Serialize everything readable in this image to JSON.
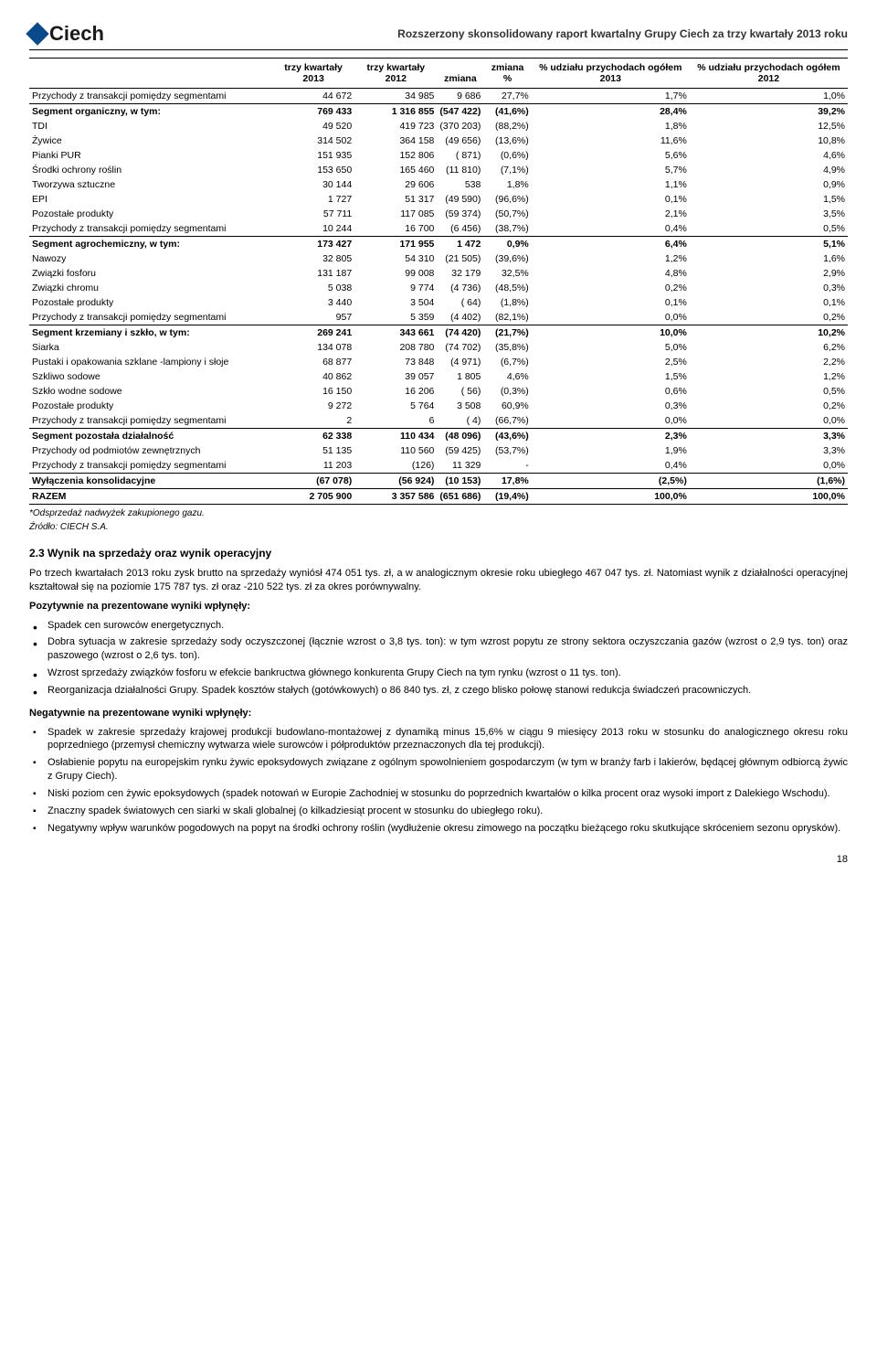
{
  "header": {
    "logo_text": "Ciech",
    "report_title": "Rozszerzony skonsolidowany raport kwartalny Grupy Ciech za trzy kwartały 2013 roku"
  },
  "table": {
    "columns": [
      "",
      "trzy kwartały 2013",
      "trzy kwartały 2012",
      "zmiana",
      "zmiana %",
      "% udziału przychodach ogółem 2013",
      "% udziału przychodach ogółem 2012"
    ],
    "rows": [
      {
        "style": "bottomline",
        "cells": [
          "Przychody z transakcji pomiędzy segmentami",
          "44 672",
          "34 985",
          "9 686",
          "27,7%",
          "1,7%",
          "1,0%"
        ]
      },
      {
        "style": "bold",
        "cells": [
          "Segment organiczny, w tym:",
          "769 433",
          "1 316 855",
          "(547 422)",
          "(41,6%)",
          "28,4%",
          "39,2%"
        ]
      },
      {
        "cells": [
          "TDI",
          "49 520",
          "419 723",
          "(370 203)",
          "(88,2%)",
          "1,8%",
          "12,5%"
        ]
      },
      {
        "cells": [
          "Żywice",
          "314 502",
          "364 158",
          "(49 656)",
          "(13,6%)",
          "11,6%",
          "10,8%"
        ]
      },
      {
        "cells": [
          "Pianki PUR",
          "151 935",
          "152 806",
          "( 871)",
          "(0,6%)",
          "5,6%",
          "4,6%"
        ]
      },
      {
        "cells": [
          "Środki ochrony roślin",
          "153 650",
          "165 460",
          "(11 810)",
          "(7,1%)",
          "5,7%",
          "4,9%"
        ]
      },
      {
        "cells": [
          "Tworzywa sztuczne",
          "30 144",
          "29 606",
          "538",
          "1,8%",
          "1,1%",
          "0,9%"
        ]
      },
      {
        "cells": [
          "EPI",
          "1 727",
          "51 317",
          "(49 590)",
          "(96,6%)",
          "0,1%",
          "1,5%"
        ]
      },
      {
        "cells": [
          "Pozostałe produkty",
          "57 711",
          "117 085",
          "(59 374)",
          "(50,7%)",
          "2,1%",
          "3,5%"
        ]
      },
      {
        "style": "bottomline",
        "cells": [
          "Przychody z transakcji pomiędzy segmentami",
          "10 244",
          "16 700",
          "(6 456)",
          "(38,7%)",
          "0,4%",
          "0,5%"
        ]
      },
      {
        "style": "bold",
        "cells": [
          "Segment agrochemiczny, w tym:",
          "173 427",
          "171 955",
          "1 472",
          "0,9%",
          "6,4%",
          "5,1%"
        ]
      },
      {
        "cells": [
          "Nawozy",
          "32 805",
          "54 310",
          "(21 505)",
          "(39,6%)",
          "1,2%",
          "1,6%"
        ]
      },
      {
        "cells": [
          "Związki fosforu",
          "131 187",
          "99 008",
          "32 179",
          "32,5%",
          "4,8%",
          "2,9%"
        ]
      },
      {
        "cells": [
          "Związki chromu",
          "5 038",
          "9 774",
          "(4 736)",
          "(48,5%)",
          "0,2%",
          "0,3%"
        ]
      },
      {
        "cells": [
          "Pozostałe produkty",
          "3 440",
          "3 504",
          "( 64)",
          "(1,8%)",
          "0,1%",
          "0,1%"
        ]
      },
      {
        "style": "bottomline",
        "cells": [
          "Przychody z transakcji pomiędzy segmentami",
          "957",
          "5 359",
          "(4 402)",
          "(82,1%)",
          "0,0%",
          "0,2%"
        ]
      },
      {
        "style": "bold",
        "cells": [
          "Segment krzemiany i szkło, w tym:",
          "269 241",
          "343 661",
          "(74 420)",
          "(21,7%)",
          "10,0%",
          "10,2%"
        ]
      },
      {
        "cells": [
          "Siarka",
          "134 078",
          "208 780",
          "(74 702)",
          "(35,8%)",
          "5,0%",
          "6,2%"
        ]
      },
      {
        "cells": [
          "Pustaki i opakowania szklane -lampiony i słoje",
          "68 877",
          "73 848",
          "(4 971)",
          "(6,7%)",
          "2,5%",
          "2,2%"
        ]
      },
      {
        "cells": [
          "Szkliwo sodowe",
          "40 862",
          "39 057",
          "1 805",
          "4,6%",
          "1,5%",
          "1,2%"
        ]
      },
      {
        "cells": [
          "Szkło wodne sodowe",
          "16 150",
          "16 206",
          "( 56)",
          "(0,3%)",
          "0,6%",
          "0,5%"
        ]
      },
      {
        "cells": [
          "Pozostałe produkty",
          "9 272",
          "5 764",
          "3 508",
          "60,9%",
          "0,3%",
          "0,2%"
        ]
      },
      {
        "style": "bottomline",
        "cells": [
          "Przychody z transakcji pomiędzy segmentami",
          "2",
          "6",
          "( 4)",
          "(66,7%)",
          "0,0%",
          "0,0%"
        ]
      },
      {
        "style": "bold",
        "cells": [
          "Segment pozostała działalność",
          "62 338",
          "110 434",
          "(48 096)",
          "(43,6%)",
          "2,3%",
          "3,3%"
        ]
      },
      {
        "cells": [
          "Przychody od podmiotów zewnętrznych",
          "51 135",
          "110 560",
          "(59 425)",
          "(53,7%)",
          "1,9%",
          "3,3%"
        ]
      },
      {
        "style": "bottomline",
        "cells": [
          "Przychody z transakcji pomiędzy segmentami",
          "11 203",
          "(126)",
          "11 329",
          "-",
          "0,4%",
          "0,0%"
        ]
      },
      {
        "style": "bold bottomline",
        "cells": [
          "Wyłączenia konsolidacyjne",
          "(67 078)",
          "(56  924)",
          "(10 153)",
          "17,8%",
          "(2,5%)",
          "(1,6%)"
        ]
      },
      {
        "style": "bold bottomline",
        "cells": [
          "RAZEM",
          "2 705 900",
          "3 357 586",
          "(651 686)",
          "(19,4%)",
          "100,0%",
          "100,0%"
        ]
      }
    ],
    "footnote1": "*Odsprzedaż nadwyżek zakupionego gazu.",
    "footnote2": "Źródło: CIECH S.A."
  },
  "section": {
    "heading": "2.3    Wynik na sprzedaży oraz wynik operacyjny",
    "p1": "Po trzech kwartałach 2013 roku zysk brutto na sprzedaży wyniósł 474 051 tys. zł, a w analogicznym okresie roku ubiegłego 467 047 tys. zł. Natomiast wynik z działalności operacyjnej kształtował się na poziomie 175 787 tys. zł oraz -210 522 tys. zł za okres porównywalny.",
    "pos_title": "Pozytywnie na prezentowane wyniki wpłynęły:",
    "pos_items": [
      "Spadek cen surowców energetycznych.",
      "Dobra sytuacja w zakresie sprzedaży sody oczyszczonej (łącznie wzrost o 3,8 tys. ton): w tym wzrost popytu ze strony sektora oczyszczania gazów (wzrost o 2,9 tys. ton) oraz paszowego (wzrost o 2,6 tys. ton).",
      "Wzrost sprzedaży związków fosforu w efekcie bankructwa głównego konkurenta Grupy Ciech na tym rynku (wzrost o 11 tys. ton).",
      "Reorganizacja działalności Grupy. Spadek kosztów stałych (gotówkowych) o 86 840 tys. zł, z czego blisko połowę stanowi redukcja świadczeń pracowniczych."
    ],
    "neg_title": "Negatywnie na prezentowane wyniki wpłynęły:",
    "neg_items": [
      "Spadek w zakresie sprzedaży krajowej produkcji budowlano-montażowej z dynamiką minus 15,6% w ciągu 9 miesięcy 2013 roku w stosunku do analogicznego okresu roku poprzedniego (przemysł chemiczny wytwarza wiele surowców i półproduktów przeznaczonych dla tej produkcji).",
      "Osłabienie popytu na europejskim rynku żywic epoksydowych związane z ogólnym spowolnieniem gospodarczym (w tym w branży farb i lakierów, będącej głównym odbiorcą żywic z Grupy Ciech).",
      "Niski poziom cen żywic epoksydowych (spadek notowań w Europie Zachodniej w stosunku do poprzednich kwartałów o kilka procent oraz wysoki import z Dalekiego Wschodu).",
      "Znaczny spadek światowych cen siarki w skali globalnej (o kilkadziesiąt procent w stosunku do ubiegłego roku).",
      "Negatywny wpływ warunków pogodowych na popyt na środki ochrony roślin (wydłużenie okresu zimowego na początku bieżącego roku skutkujące skróceniem sezonu oprysków)."
    ]
  },
  "page_number": "18"
}
